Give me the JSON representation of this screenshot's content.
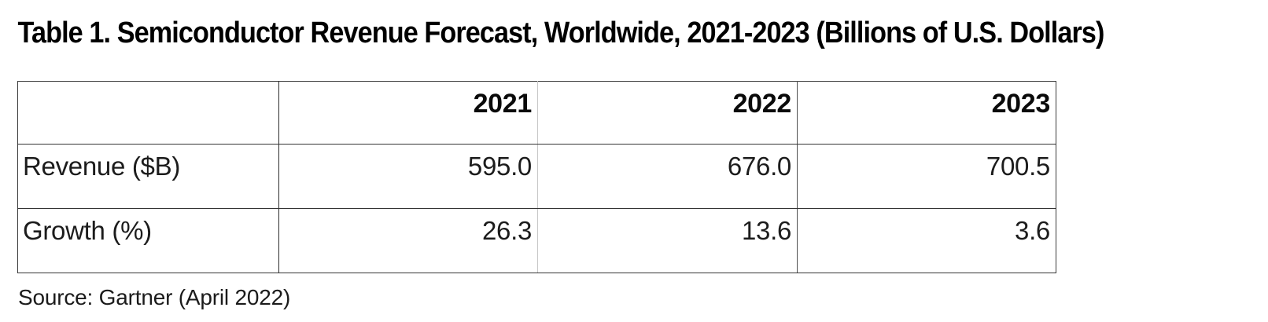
{
  "header": {
    "title": "Table 1. Semiconductor Revenue Forecast, Worldwide, 2021-2023 (Billions of U.S. Dollars)"
  },
  "table": {
    "col_headers": [
      "",
      "2021",
      "2022",
      "2023"
    ],
    "rows": [
      {
        "label": "Revenue ($B)",
        "values": [
          "595.0",
          "676.0",
          "700.5"
        ]
      },
      {
        "label": "Growth (%)",
        "values": [
          "26.3",
          "13.6",
          "3.6"
        ]
      }
    ]
  },
  "footer": {
    "source": "Source: Gartner (April 2022)"
  },
  "colors": {
    "background": "#ffffff",
    "title_text": "#000000",
    "cell_text": "#1c1c1c",
    "border_dark": "#2c2c2c",
    "border_mid": "#505050",
    "border_light": "#c7c7c7",
    "outer_border": "#3c3c3c"
  },
  "chart_data": {
    "type": "table",
    "title": "Table 1. Semiconductor Revenue Forecast, Worldwide, 2021-2023 (Billions of U.S. Dollars)",
    "columns": [
      "",
      "2021",
      "2022",
      "2023"
    ],
    "rows": [
      [
        "Revenue ($B)",
        595.0,
        676.0,
        700.5
      ],
      [
        "Growth (%)",
        26.3,
        13.6,
        3.6
      ]
    ],
    "source": "Source: Gartner (April 2022)"
  }
}
